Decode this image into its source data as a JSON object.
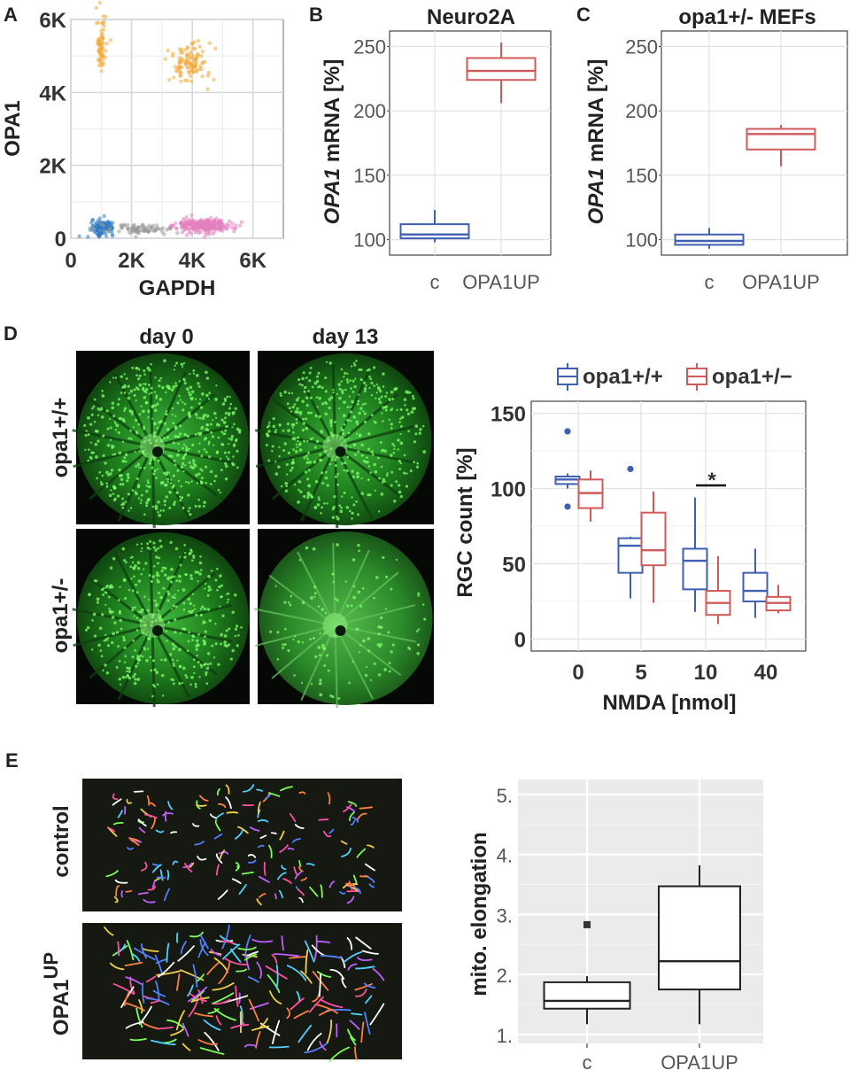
{
  "panels": {
    "A": "A",
    "B": "B",
    "C": "C",
    "D": "D",
    "E": "E"
  },
  "colors": {
    "blue": "#3f5fb0",
    "red": "#cf5a5a",
    "orange": "#f2a93b",
    "pink": "#e37fc0",
    "gray": "#9a9a9a",
    "scatterBlue": "#2f7bc4",
    "retina": "#1f7a1f",
    "greenDot": "#7dff6a"
  },
  "images": {
    "day0": "day 0",
    "day13": "day 13",
    "row1": "opa1+/+",
    "row2": "opa1+/-",
    "control": "control",
    "opa1up_main": "OPA1",
    "opa1up_sup": "UP"
  },
  "chart_data": [
    {
      "id": "A",
      "type": "scatter",
      "xlabel": "GAPDH",
      "ylabel": "OPA1",
      "xlim": [
        0,
        7000
      ],
      "ylim": [
        0,
        6000
      ],
      "xticks": [
        "0",
        "2K",
        "4K",
        "6K"
      ],
      "xtickValues": [
        0,
        2000,
        4000,
        6000
      ],
      "yticks": [
        "0",
        "2K",
        "4K",
        "6K"
      ],
      "ytickValues": [
        0,
        2000,
        4000,
        6000
      ],
      "grid": true,
      "clusters": [
        {
          "color": "orange",
          "cx": 1000,
          "cy": 5300,
          "sx": 80,
          "sy": 350,
          "n": 70
        },
        {
          "color": "orange",
          "cx": 3900,
          "cy": 4800,
          "sx": 350,
          "sy": 300,
          "n": 110
        },
        {
          "color": "scatterBlue",
          "cx": 1050,
          "cy": 300,
          "sx": 180,
          "sy": 100,
          "n": 120
        },
        {
          "color": "gray",
          "cx": 2300,
          "cy": 250,
          "sx": 700,
          "sy": 60,
          "n": 90
        },
        {
          "color": "pink",
          "cx": 4400,
          "cy": 350,
          "sx": 450,
          "sy": 100,
          "n": 260
        }
      ]
    },
    {
      "id": "B",
      "type": "box",
      "title": "Neuro2A",
      "ylabel_italic": "OPA1",
      "ylabel_rest": " mRNA [%]",
      "categories": [
        "c",
        "OPA1UP"
      ],
      "ylim": [
        88,
        262
      ],
      "yticks": [
        100,
        150,
        200,
        250
      ],
      "boxes": [
        {
          "cat": "c",
          "color": "blue",
          "min": 98,
          "q1": 101,
          "median": 104,
          "q3": 112,
          "max": 123
        },
        {
          "cat": "OPA1UP",
          "color": "red",
          "min": 206,
          "q1": 224,
          "median": 231,
          "q3": 241,
          "max": 253
        }
      ]
    },
    {
      "id": "C",
      "type": "box",
      "title": "opa1+/- MEFs",
      "ylabel_italic": "OPA1",
      "ylabel_rest": " mRNA [%]",
      "categories": [
        "c",
        "OPA1UP"
      ],
      "ylim": [
        88,
        262
      ],
      "yticks": [
        100,
        150,
        200,
        250
      ],
      "boxes": [
        {
          "cat": "c",
          "color": "blue",
          "min": 93,
          "q1": 96,
          "median": 99,
          "q3": 104,
          "max": 109
        },
        {
          "cat": "OPA1UP",
          "color": "red",
          "min": 157,
          "q1": 170,
          "median": 182,
          "q3": 186,
          "max": 189
        }
      ]
    },
    {
      "id": "D",
      "type": "box",
      "xlabel": "NMDA [nmol]",
      "ylabel": "RGC count [%]",
      "categories": [
        "0",
        "5",
        "10",
        "40"
      ],
      "ylim": [
        -8,
        158
      ],
      "yticks": [
        0,
        50,
        100,
        150
      ],
      "legend": [
        "opa1+/+",
        "opa1+/−"
      ],
      "legendPosition": "top",
      "significance": {
        "cat": "10",
        "label": "*"
      },
      "groups": [
        {
          "cat": "0",
          "boxes": [
            {
              "series": 0,
              "color": "blue",
              "min": 100,
              "q1": 103,
              "median": 106,
              "q3": 108,
              "max": 110,
              "outliers": [
                138,
                88
              ]
            },
            {
              "series": 1,
              "color": "red",
              "min": 78,
              "q1": 87,
              "median": 97,
              "q3": 106,
              "max": 112,
              "outliers": []
            }
          ]
        },
        {
          "cat": "5",
          "boxes": [
            {
              "series": 0,
              "color": "blue",
              "min": 27,
              "q1": 44,
              "median": 62,
              "q3": 67,
              "max": 68,
              "outliers": [
                113
              ]
            },
            {
              "series": 1,
              "color": "red",
              "min": 24,
              "q1": 49,
              "median": 59,
              "q3": 84,
              "max": 98,
              "outliers": []
            }
          ]
        },
        {
          "cat": "10",
          "boxes": [
            {
              "series": 0,
              "color": "blue",
              "min": 18,
              "q1": 33,
              "median": 52,
              "q3": 60,
              "max": 94,
              "outliers": []
            },
            {
              "series": 1,
              "color": "red",
              "min": 10,
              "q1": 16,
              "median": 24,
              "q3": 32,
              "max": 55,
              "outliers": []
            }
          ]
        },
        {
          "cat": "40",
          "boxes": [
            {
              "series": 0,
              "color": "blue",
              "min": 14,
              "q1": 25,
              "median": 32,
              "q3": 44,
              "max": 60,
              "outliers": []
            },
            {
              "series": 1,
              "color": "red",
              "min": 17,
              "q1": 19,
              "median": 24,
              "q3": 28,
              "max": 36,
              "outliers": []
            }
          ]
        }
      ]
    },
    {
      "id": "E",
      "type": "box",
      "ylabel": "mito. elongation",
      "categories": [
        "c",
        "OPA1UP"
      ],
      "ylim": [
        0.85,
        5.25
      ],
      "yticks": [
        "1.",
        "2.",
        "3.",
        "4.",
        "5."
      ],
      "ytickValues": [
        1,
        2,
        3,
        4,
        5
      ],
      "background": "#ebebeb",
      "boxes": [
        {
          "cat": "c",
          "min": 1.17,
          "q1": 1.43,
          "median": 1.56,
          "q3": 1.87,
          "max": 1.97,
          "outliers": [
            2.83
          ]
        },
        {
          "cat": "OPA1UP",
          "min": 1.17,
          "q1": 1.75,
          "median": 2.22,
          "q3": 3.47,
          "max": 3.82,
          "outliers": []
        }
      ]
    }
  ]
}
